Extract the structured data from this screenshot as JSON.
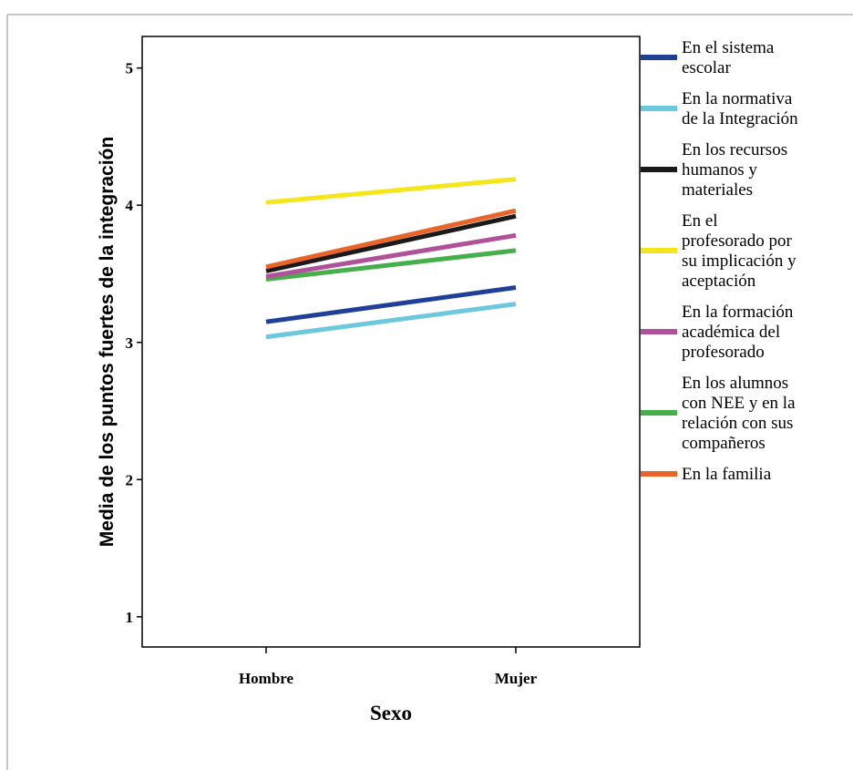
{
  "chart_data": {
    "type": "line",
    "title": "",
    "xlabel": "Sexo",
    "ylabel": "Media de los puntos fuertes de la integración",
    "categories": [
      "Hombre",
      "Mujer"
    ],
    "ylim": [
      0.78,
      5.23
    ],
    "yticks": [
      "1",
      "2",
      "3",
      "4",
      "5"
    ],
    "grid": false,
    "legend_position": "right",
    "series": [
      {
        "name": "En el sistema escolar",
        "legend_lines": [
          "En el sistema",
          "escolar"
        ],
        "color": "#1F3F99",
        "values": [
          3.15,
          3.4
        ]
      },
      {
        "name": "En la normativa de la Integración",
        "legend_lines": [
          "En la normativa",
          "de la Integración"
        ],
        "color": "#6CC8DD",
        "values": [
          3.04,
          3.28
        ]
      },
      {
        "name": "En los recursos humanos y materiales",
        "legend_lines": [
          "En los recursos",
          "humanos y",
          "materiales"
        ],
        "color": "#1A1A1A",
        "values": [
          3.52,
          3.92
        ]
      },
      {
        "name": "En el profesorado por su implicación y aceptación",
        "legend_lines": [
          "En el",
          "profesorado por",
          "su implicación y",
          "aceptación"
        ],
        "color": "#F4E61A",
        "values": [
          4.02,
          4.19
        ]
      },
      {
        "name": "En la formación académica del profesorado",
        "legend_lines": [
          "En la formación",
          "académica del",
          "profesorado"
        ],
        "color": "#B1519A",
        "values": [
          3.48,
          3.78
        ]
      },
      {
        "name": "En los alumnos con NEE y en la relación con sus compañeros",
        "legend_lines": [
          "En los alumnos",
          "con NEE y en la",
          "relación con sus",
          "compañeros"
        ],
        "color": "#45B04A",
        "values": [
          3.46,
          3.67
        ]
      },
      {
        "name": "En la familia",
        "legend_lines": [
          "En la familia"
        ],
        "color": "#E86428",
        "values": [
          3.55,
          3.96
        ]
      }
    ]
  }
}
